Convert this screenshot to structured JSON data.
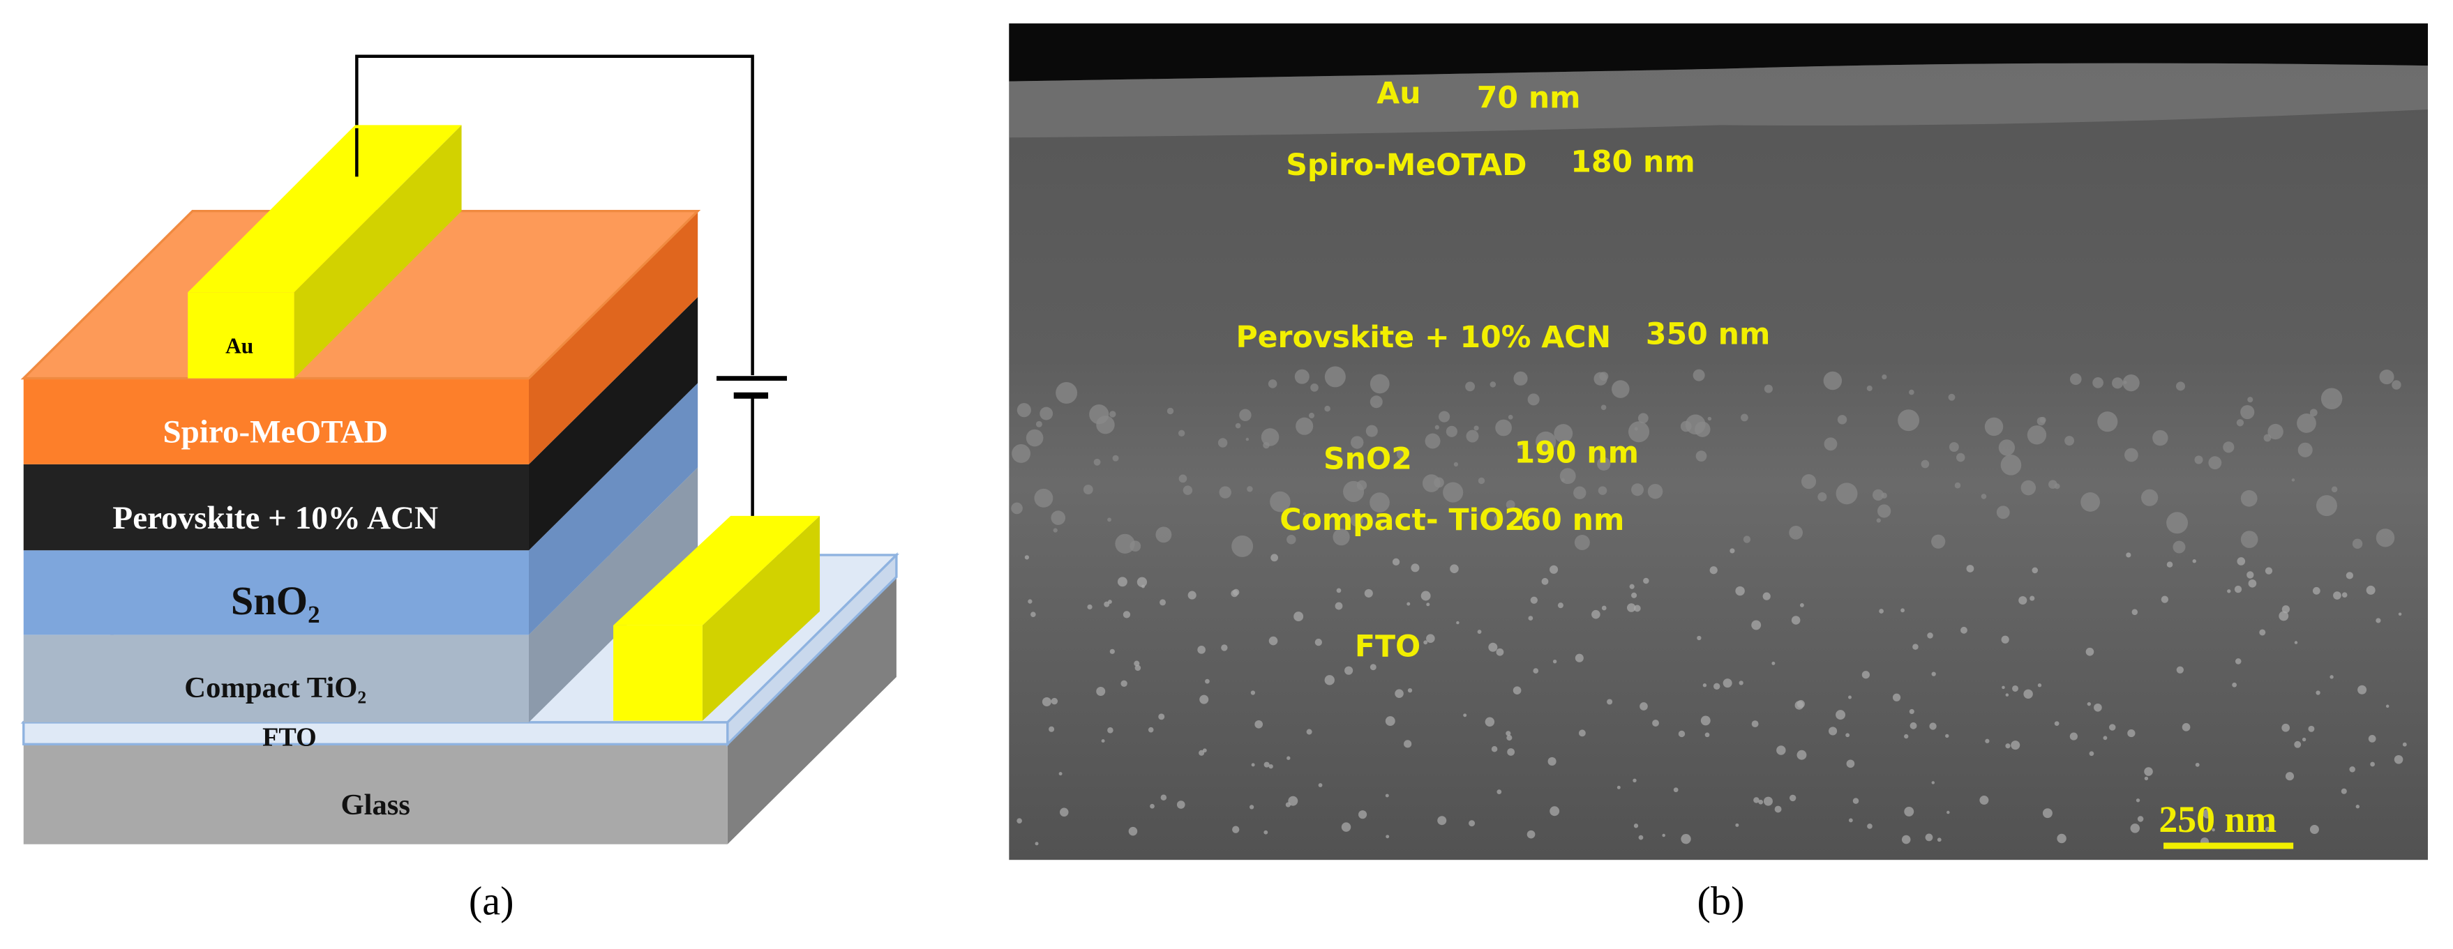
{
  "panel_a": {
    "electrode_label": "Au",
    "layers": [
      "Spiro-MeOTAD",
      "Perovskite + 10% ACN",
      "SnO₂",
      "Compact TiO₂",
      "FTO",
      "Glass"
    ],
    "caption": "(a)"
  },
  "panel_b": {
    "annotations": [
      {
        "label": "Au",
        "thickness": "70 nm"
      },
      {
        "label": "Spiro-MeOTAD",
        "thickness": "180 nm"
      },
      {
        "label": "Perovskite + 10% ACN",
        "thickness": "350 nm"
      },
      {
        "label": "SnO2",
        "thickness": "190 nm"
      },
      {
        "label": "Compact- TiO2",
        "thickness": "60 nm"
      },
      {
        "label": "FTO"
      }
    ],
    "scale_bar": "250 nm",
    "caption": "(b)"
  }
}
